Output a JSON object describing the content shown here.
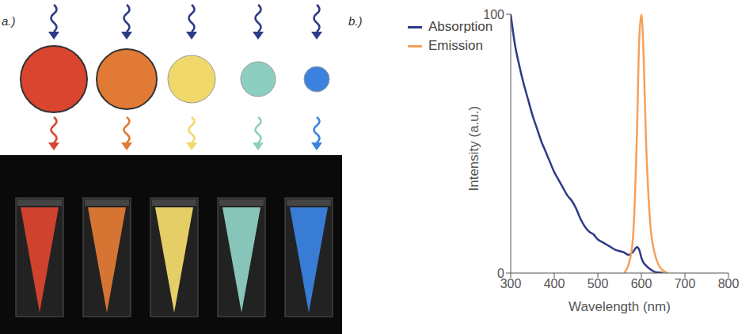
{
  "panel_a": {
    "label": "a.)",
    "colors": [
      "#d9452f",
      "#e07a35",
      "#f0d86a",
      "#8ccfc0",
      "#3b82e0"
    ]
  },
  "chart_data": {
    "type": "line",
    "panel_label": "b.)",
    "x_label": "Wavelength (nm)",
    "y_label": "Intensity (a.u.)",
    "x": [
      300,
      310,
      320,
      330,
      340,
      350,
      360,
      370,
      380,
      390,
      400,
      410,
      420,
      430,
      440,
      450,
      460,
      470,
      480,
      490,
      500,
      510,
      520,
      530,
      540,
      550,
      560,
      570,
      580,
      590,
      595,
      600,
      605,
      610,
      620,
      630,
      640,
      650,
      660
    ],
    "series": [
      {
        "name": "Absorption",
        "color": "#2e3a87",
        "values": [
          100,
          88,
          80,
          73,
          67,
          61,
          56,
          51,
          47,
          43,
          39,
          36,
          33,
          30,
          28,
          25,
          21,
          18,
          16,
          15,
          13,
          12,
          11,
          10,
          9,
          8.5,
          8,
          7,
          8,
          10,
          9,
          6,
          4,
          3,
          1.5,
          0.5,
          0.2,
          0,
          null
        ]
      },
      {
        "name": "Emission",
        "color": "#f5a05a",
        "values": [
          null,
          null,
          null,
          null,
          null,
          null,
          null,
          null,
          null,
          null,
          null,
          null,
          null,
          null,
          null,
          null,
          null,
          null,
          null,
          null,
          null,
          null,
          null,
          null,
          null,
          null,
          0,
          3,
          12,
          55,
          90,
          100,
          85,
          55,
          20,
          8,
          3,
          1,
          0
        ]
      }
    ],
    "xlim": [
      300,
      800
    ],
    "xticks": [
      300,
      400,
      500,
      600,
      700,
      800
    ],
    "ylim": [
      0,
      100
    ],
    "yticks": [
      0,
      100
    ],
    "legend": "upper left",
    "grid": false
  }
}
